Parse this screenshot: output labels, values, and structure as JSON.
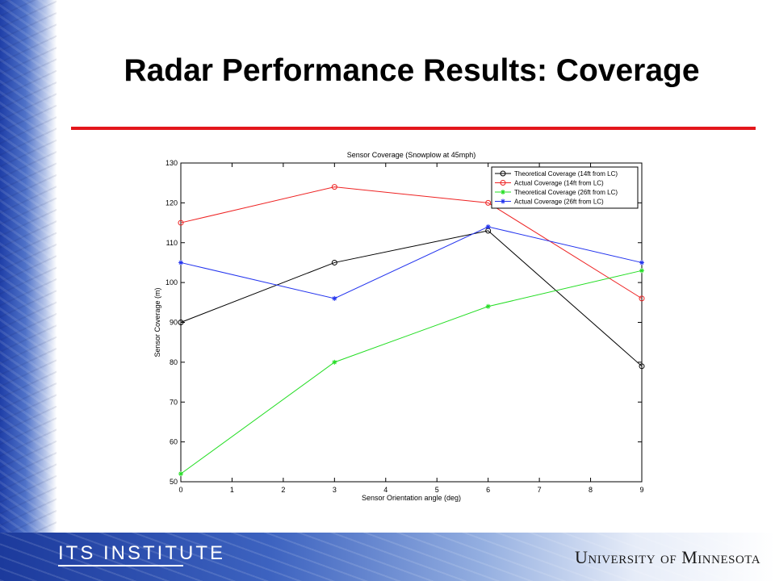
{
  "slide": {
    "title": "Radar Performance Results: Coverage",
    "footer_left": "ITS INSTITUTE",
    "footer_right": "University of Minnesota",
    "accent_color": "#e3161b"
  },
  "chart_data": {
    "type": "line",
    "title": "Sensor Coverage (Snowplow at 45mph)",
    "xlabel": "Sensor Orientation angle (deg)",
    "ylabel": "Sensor Coverage (m)",
    "xlim": [
      0,
      9
    ],
    "ylim": [
      50,
      130
    ],
    "xticks": [
      0,
      1,
      2,
      3,
      4,
      5,
      6,
      7,
      8,
      9
    ],
    "yticks": [
      50,
      60,
      70,
      80,
      90,
      100,
      110,
      120,
      130
    ],
    "grid": false,
    "legend_position": "top-right",
    "series": [
      {
        "name": "Theoretical Coverage (14ft from LC)",
        "color": "#000000",
        "marker": "circle",
        "x": [
          0,
          3,
          6,
          9
        ],
        "y": [
          90,
          105,
          113,
          79
        ]
      },
      {
        "name": "Actual Coverage (14ft from LC)",
        "color": "#ee2222",
        "marker": "circle",
        "x": [
          0,
          3,
          6,
          9
        ],
        "y": [
          115,
          124,
          120,
          96
        ]
      },
      {
        "name": "Theoretical Coverage (26ft from LC)",
        "color": "#22dd22",
        "marker": "star",
        "x": [
          0,
          3,
          6,
          9
        ],
        "y": [
          52,
          80,
          94,
          103
        ]
      },
      {
        "name": "Actual Coverage (26ft from LC)",
        "color": "#2233ee",
        "marker": "star",
        "x": [
          0,
          3,
          6,
          9
        ],
        "y": [
          105,
          96,
          114,
          105
        ]
      }
    ]
  }
}
